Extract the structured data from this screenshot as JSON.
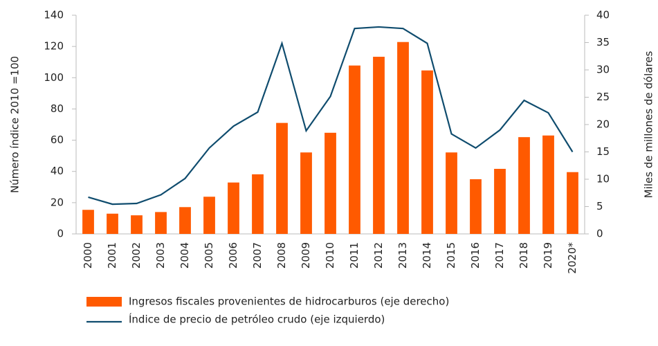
{
  "chart_data": {
    "type": "bar-line",
    "y_label": "Número índice 2010 =100",
    "y2_label": "Miles de millones de dólares",
    "categories": [
      "2000",
      "2001",
      "2002",
      "2003",
      "2004",
      "2005",
      "2006",
      "2007",
      "2008",
      "2009",
      "2010",
      "2011",
      "2012",
      "2013",
      "2014",
      "2015",
      "2016",
      "2017",
      "2018",
      "2019",
      "2020*"
    ],
    "series": [
      {
        "name": "Ingresos fiscales provenientes de hidrocarburos (eje derecho)",
        "type": "bar",
        "axis": "y2",
        "color": "#ff5a00",
        "values": [
          4.4,
          3.7,
          3.4,
          4.0,
          4.9,
          6.8,
          9.4,
          10.9,
          20.3,
          14.9,
          18.5,
          30.8,
          32.4,
          35.1,
          29.9,
          14.9,
          10.0,
          11.9,
          17.7,
          18.0,
          11.3
        ]
      },
      {
        "name": "Índice de precio de petróleo crudo (eje izquierdo)",
        "type": "line",
        "axis": "y",
        "color": "#0f4c6e",
        "values": [
          23.5,
          19,
          19.5,
          25,
          35.5,
          55,
          69,
          78,
          122,
          66,
          88,
          131.5,
          132.5,
          131.5,
          122,
          64,
          55,
          66.5,
          85.5,
          77.5,
          52.5
        ]
      }
    ],
    "ylim": [
      0,
      140
    ],
    "yticks": [
      0,
      20,
      40,
      60,
      80,
      100,
      120,
      140
    ],
    "y2lim": [
      0,
      40
    ],
    "y2ticks": [
      0,
      5,
      10,
      15,
      20,
      25,
      30,
      35,
      40
    ],
    "legend": "bottom"
  }
}
